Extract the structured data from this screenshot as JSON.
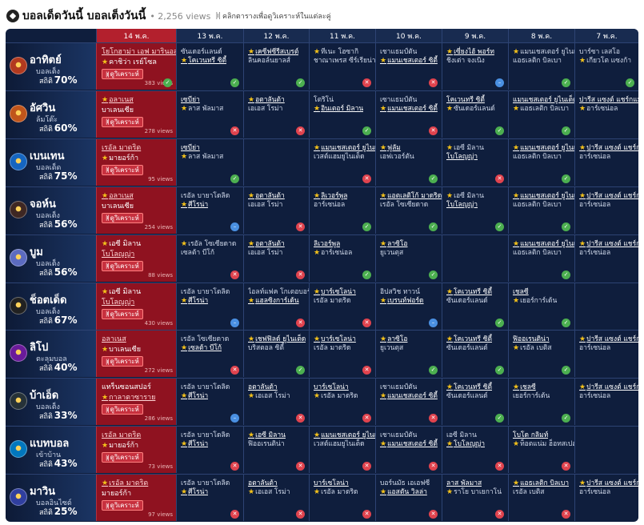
{
  "page": {
    "title": "บอลเด็ดวันนี้ บอลเต็งวันนี้",
    "views": "• 2,256 views",
    "hint": "คลิกตารางเพื่อดูวิเคราะห์ในแต่ละคู่"
  },
  "dates": [
    "14 พ.ค.",
    "13 พ.ค.",
    "12 พ.ค.",
    "11 พ.ค.",
    "10 พ.ค.",
    "9 พ.ค.",
    "8 พ.ค.",
    "7 พ.ค."
  ],
  "analyze_label": "ดูวิเคราะห์",
  "stat_label": "สถิติ",
  "colors": {
    "board": "#0f1e3d",
    "today": "#8f1220",
    "win": "#4caf50",
    "loss": "#e0434e",
    "draw": "#4a90e2",
    "star": "#f4c21b"
  },
  "teams": [
    {
      "name": "อาทิตย์",
      "type": "บอลเต็ง",
      "pct": "70%",
      "logo": "#b23a1f",
      "today": {
        "l1": "โยโกฮาม่า เอฟ มารินอส",
        "l1s": false,
        "l2": "คาชิว่า เรย์โซล",
        "l2s": true,
        "u": 1,
        "views": "383 views",
        "res": "W"
      },
      "days": [
        {
          "l1": "ซันเดอร์แลนด์",
          "l1s": false,
          "l2": "โคเวนทรี ซิตี้",
          "l2s": true,
          "u": 2,
          "res": "W"
        },
        {
          "l1": "เคซีฟซีรีสเบรต์",
          "l1s": true,
          "l2": "ลินคอล์นยาลส์",
          "l2s": false,
          "u": 1,
          "res": "W"
        },
        {
          "l1": "ทีเนะ โฮซากิ",
          "l1s": true,
          "l2": "ชาณาเพรส ซีร์เรียน่า",
          "l2s": false,
          "u": 0,
          "res": "L"
        },
        {
          "l1": "เชาแธมป์ตัน",
          "l1s": false,
          "l2": "แมนเชสเตอร์ ซิตี้",
          "l2s": true,
          "u": 2,
          "res": "L"
        },
        {
          "l1": "เซี่ยงไฮ้ พอร์ท",
          "l1s": true,
          "l2": "ชิงเต่า จงเนิง",
          "l2s": false,
          "u": 1,
          "res": "D"
        },
        {
          "l1": "แมนเชสเตอร์ ยูไนเต็ด",
          "l1s": true,
          "l2": "แอธเลติก บิลเบา",
          "l2s": false,
          "u": 0,
          "res": "W"
        },
        {
          "l1": "บาร์ซา เลสโอ",
          "l1s": false,
          "l2": "เกียวโต แซงก้า",
          "l2s": true,
          "u": 0,
          "res": "W"
        }
      ]
    },
    {
      "name": "อัศวิน",
      "type": "ล้มโต๊ะ",
      "pct": "60%",
      "logo": "#c0551b",
      "today": {
        "l1": "อลาเนส",
        "l1s": true,
        "l2": "บาเลนเซีย",
        "l2s": false,
        "u": 1,
        "views": "278 views",
        "res": ""
      },
      "days": [
        {
          "l1": "เซบีย่า",
          "l1s": false,
          "l2": "ลาส พัลมาส",
          "l2s": true,
          "u": 1,
          "res": "L"
        },
        {
          "l1": "อตาลันต้า",
          "l1s": true,
          "l2": "เอเอส โรม่า",
          "l2s": false,
          "u": 1,
          "res": "L"
        },
        {
          "l1": "โตริโน่",
          "l1s": false,
          "l2": "อินเตอร์ มิลาน",
          "l2s": true,
          "u": 2,
          "res": "W"
        },
        {
          "l1": "เซาแธมป์ตัน",
          "l1s": false,
          "l2": "แมนเชสเตอร์ ซิตี้",
          "l2s": true,
          "u": 2,
          "res": "L"
        },
        {
          "l1": "โคเวนทรี ซิตี้",
          "l1s": false,
          "l2": "ซันเดอร์แลนด์",
          "l2s": true,
          "u": 1,
          "res": "W"
        },
        {
          "l1": "แมนเชสเตอร์ ยูไนเต็ด",
          "l1s": false,
          "l2": "แอธเลติก บิลเบา",
          "l2s": true,
          "u": 1,
          "res": "W"
        },
        {
          "l1": "ปารีส แซงต์ แชร์กแมง",
          "l1s": false,
          "l2": "อาร์เซน่อล",
          "l2s": true,
          "u": 1,
          "res": ""
        }
      ]
    },
    {
      "name": "เบนเทน",
      "type": "บอลเด็ด",
      "pct": "75%",
      "logo": "#1565c0",
      "today": {
        "l1": "เรอัล มาดริด",
        "l1s": false,
        "l2": "มายอร์ก้า",
        "l2s": true,
        "u": 1,
        "views": "95 views",
        "res": ""
      },
      "days": [
        {
          "l1": "เซบีย่า",
          "l1s": false,
          "l2": "ลาส พัลมาส",
          "l2s": true,
          "u": 1,
          "res": "W"
        },
        {
          "l1": "",
          "l1s": false,
          "l2": "",
          "l2s": false,
          "u": 0,
          "res": ""
        },
        {
          "l1": "แมนเชสเตอร์ ยูไนเต็ด",
          "l1s": true,
          "l2": "เวสต์แฮมยูไนเต็ด",
          "l2s": false,
          "u": 1,
          "res": "L"
        },
        {
          "l1": "ฟูลัม",
          "l1s": true,
          "l2": "เอฟเวอร์ตัน",
          "l2s": false,
          "u": 1,
          "res": "W"
        },
        {
          "l1": "เอซี มิลาน",
          "l1s": true,
          "l2": "โบโลญญ่า",
          "l2s": false,
          "u": 2,
          "res": "L"
        },
        {
          "l1": "แมนเชสเตอร์ ยูไนเต็ด",
          "l1s": true,
          "l2": "แอธเลติก บิลเบา",
          "l2s": false,
          "u": 1,
          "res": "W"
        },
        {
          "l1": "ปารีส แซงต์ แชร์กแมง",
          "l1s": true,
          "l2": "อาร์เซน่อล",
          "l2s": false,
          "u": 1,
          "res": ""
        }
      ]
    },
    {
      "name": "จอห์น",
      "type": "บอลเต็ง",
      "pct": "56%",
      "logo": "#3e2723",
      "today": {
        "l1": "อลาเนส",
        "l1s": true,
        "l2": "บาเลนเซีย",
        "l2s": false,
        "u": 1,
        "views": "254 views",
        "res": ""
      },
      "days": [
        {
          "l1": "เรอัล บายาโดลิด",
          "l1s": false,
          "l2": "ศีโรน่า",
          "l2s": true,
          "u": 2,
          "res": "D"
        },
        {
          "l1": "อตาลันต้า",
          "l1s": true,
          "l2": "เอเอส โรม่า",
          "l2s": false,
          "u": 1,
          "res": "L"
        },
        {
          "l1": "ลิเวอร์พูล",
          "l1s": true,
          "l2": "อาร์เซน่อล",
          "l2s": false,
          "u": 1,
          "res": "W"
        },
        {
          "l1": "แอตเลติโก้ มาดริด",
          "l1s": true,
          "l2": "เรอัล โซเซียดาด",
          "l2s": false,
          "u": 1,
          "res": "W"
        },
        {
          "l1": "เอซี มิลาน",
          "l1s": true,
          "l2": "โบโลญญ่า",
          "l2s": false,
          "u": 2,
          "res": "W"
        },
        {
          "l1": "แมนเชสเตอร์ ยูไนเต็ด",
          "l1s": true,
          "l2": "แอธเลติก บิลเบา",
          "l2s": false,
          "u": 1,
          "res": "W"
        },
        {
          "l1": "ปารีส แซงต์ แชร์กแมง",
          "l1s": true,
          "l2": "อาร์เซน่อล",
          "l2s": false,
          "u": 1,
          "res": ""
        }
      ]
    },
    {
      "name": "บูม",
      "type": "บอลเต็ง",
      "pct": "56%",
      "logo": "#5c6bc0",
      "today": {
        "l1": "เอซี มิลาน",
        "l1s": true,
        "l2": "โบโลญญ่า",
        "l2s": false,
        "u": 2,
        "views": "88 views",
        "res": ""
      },
      "days": [
        {
          "l1": "เรอัล โซเซียดาด",
          "l1s": true,
          "l2": "เซลต้า บีโก้",
          "l2s": false,
          "u": 3,
          "res": "L"
        },
        {
          "l1": "อตาลันต้า",
          "l1s": true,
          "l2": "เอเอส โรม่า",
          "l2s": false,
          "u": 1,
          "res": "L"
        },
        {
          "l1": "ลิเวอร์พูล",
          "l1s": false,
          "l2": "อาร์เซน่อล",
          "l2s": true,
          "u": 1,
          "res": "W"
        },
        {
          "l1": "ลาซิโอ",
          "l1s": true,
          "l2": "ยูเวนตุส",
          "l2s": false,
          "u": 1,
          "res": "W"
        },
        {
          "l1": "",
          "l1s": false,
          "l2": "",
          "l2s": false,
          "u": 0,
          "res": ""
        },
        {
          "l1": "แมนเชสเตอร์ ยูไนเต็ด",
          "l1s": true,
          "l2": "แอธเลติก บิลเบา",
          "l2s": false,
          "u": 1,
          "res": "W"
        },
        {
          "l1": "ปารีส แซงต์ แชร์กแมง",
          "l1s": true,
          "l2": "อาร์เซน่อล",
          "l2s": false,
          "u": 1,
          "res": ""
        }
      ]
    },
    {
      "name": "ช็อตเด็ด",
      "type": "บอลเต็ง",
      "pct": "67%",
      "logo": "#212121",
      "today": {
        "l1": "เอซี มิลาน",
        "l1s": true,
        "l2": "โบโลญญ่า",
        "l2s": false,
        "u": 2,
        "views": "430 views",
        "res": ""
      },
      "days": [
        {
          "l1": "เรอัล บายาโดลิด",
          "l1s": false,
          "l2": "ศีโรน่า",
          "l2s": true,
          "u": 2,
          "res": "D"
        },
        {
          "l1": "ไอลท์แฟค โกเตอบอร์ก",
          "l1s": false,
          "l2": "แฮลซิงการ์เด้น",
          "l2s": true,
          "u": 2,
          "res": "L"
        },
        {
          "l1": "บาร์เซโลน่า",
          "l1s": true,
          "l2": "เรอัล มาดริด",
          "l2s": false,
          "u": 1,
          "res": "L"
        },
        {
          "l1": "อิปสวิช ทาวน์",
          "l1s": false,
          "l2": "เบรนท์ฟอร์ด",
          "l2s": true,
          "u": 2,
          "res": "D"
        },
        {
          "l1": "โคเวนทรี ซิตี้",
          "l1s": true,
          "l2": "ซันเดอร์แลนด์",
          "l2s": false,
          "u": 1,
          "res": "W"
        },
        {
          "l1": "เชลซี",
          "l1s": false,
          "l2": "เยอร์การ์เด้น",
          "l2s": true,
          "u": 1,
          "res": "W"
        },
        {
          "l1": "",
          "l1s": false,
          "l2": "",
          "l2s": false,
          "u": 0,
          "res": ""
        }
      ]
    },
    {
      "name": "ลิโป",
      "type": "ตะลุมบอล",
      "pct": "40%",
      "logo": "#6a1b9a",
      "today": {
        "l1": "อลาเนส",
        "l1s": false,
        "l2": "บาเลนเซีย",
        "l2s": true,
        "u": 1,
        "views": "272 views",
        "res": ""
      },
      "days": [
        {
          "l1": "เรอัล โซเซียดาด",
          "l1s": false,
          "l2": "เซลต้า บีโก้",
          "l2s": true,
          "u": 2,
          "res": "L"
        },
        {
          "l1": "เชฟฟิลด์ ยูไนเต็ด",
          "l1s": true,
          "l2": "บริสตอล ซิตี้",
          "l2s": false,
          "u": 1,
          "res": "W"
        },
        {
          "l1": "บาร์เซโลน่า",
          "l1s": true,
          "l2": "เรอัล มาดริด",
          "l2s": false,
          "u": 1,
          "res": "L"
        },
        {
          "l1": "ลาซิโอ",
          "l1s": true,
          "l2": "ยูเวนตุส",
          "l2s": false,
          "u": 1,
          "res": "W"
        },
        {
          "l1": "โคเวนทรี ซิตี้",
          "l1s": true,
          "l2": "ซันเดอร์แลนด์",
          "l2s": false,
          "u": 1,
          "res": "W"
        },
        {
          "l1": "ฟิออเรนติน่า",
          "l1s": false,
          "l2": "เรอัล เบติส",
          "l2s": true,
          "u": 1,
          "res": "W"
        },
        {
          "l1": "ปารีส แซงต์ แชร์กแมง",
          "l1s": true,
          "l2": "อาร์เซน่อล",
          "l2s": false,
          "u": 1,
          "res": ""
        }
      ]
    },
    {
      "name": "บ้าเอ็ด",
      "type": "บอลเต็ง",
      "pct": "33%",
      "logo": "#263238",
      "today": {
        "l1": "แทร็นซอนสปอร์",
        "l1s": false,
        "l2": "กาลาตาซาราย",
        "l2s": true,
        "u": 2,
        "views": "286 views",
        "res": ""
      },
      "days": [
        {
          "l1": "เรอัล บายาโดลิด",
          "l1s": false,
          "l2": "ศีโรน่า",
          "l2s": true,
          "u": 2,
          "res": "D"
        },
        {
          "l1": "อตาลันต้า",
          "l1s": false,
          "l2": "เอเอส โรม่า",
          "l2s": true,
          "u": 1,
          "res": "L"
        },
        {
          "l1": "บาร์เซโลน่า",
          "l1s": false,
          "l2": "เรอัล มาดริด",
          "l2s": true,
          "u": 1,
          "res": "L"
        },
        {
          "l1": "เชาแธมป์ตัน",
          "l1s": false,
          "l2": "แมนเชสเตอร์ ซิตี้",
          "l2s": true,
          "u": 2,
          "res": "L"
        },
        {
          "l1": "โคเวนทรี ซิตี้",
          "l1s": true,
          "l2": "ซันเดอร์แลนด์",
          "l2s": false,
          "u": 1,
          "res": "W"
        },
        {
          "l1": "เชลซี",
          "l1s": true,
          "l2": "เยอร์การ์เด้น",
          "l2s": false,
          "u": 1,
          "res": "W"
        },
        {
          "l1": "ปารีส แซงต์ แชร์กแมง",
          "l1s": true,
          "l2": "อาร์เซน่อล",
          "l2s": false,
          "u": 1,
          "res": ""
        }
      ]
    },
    {
      "name": "แบทบอล",
      "type": "เข้าบ้าน",
      "pct": "43%",
      "logo": "#0277bd",
      "today": {
        "l1": "เรอัล มาดริด",
        "l1s": false,
        "l2": "มายอร์ก้า",
        "l2s": true,
        "u": 1,
        "views": "73 views",
        "res": ""
      },
      "days": [
        {
          "l1": "เรอัล บายาโดลิด",
          "l1s": false,
          "l2": "ศีโรน่า",
          "l2s": true,
          "u": 2,
          "res": "L"
        },
        {
          "l1": "เอซี มิลาน",
          "l1s": true,
          "l2": "ฟิออเรนติน่า",
          "l2s": false,
          "u": 1,
          "res": "L"
        },
        {
          "l1": "แมนเชสเตอร์ ยูไนเต็ด",
          "l1s": true,
          "l2": "เวสต์แฮมยูไนเต็ด",
          "l2s": false,
          "u": 1,
          "res": "L"
        },
        {
          "l1": "เชาแธมป์ตัน",
          "l1s": false,
          "l2": "แมนเชสเตอร์ ซิตี้",
          "l2s": true,
          "u": 2,
          "res": "L"
        },
        {
          "l1": "เอซี มิลาน",
          "l1s": false,
          "l2": "โบโลญญ่า",
          "l2s": true,
          "u": 2,
          "res": "L"
        },
        {
          "l1": "โบโด กลิมท์",
          "l1s": false,
          "l2": "ท็อตแน่ม ฮ็อทสเปอร์",
          "l2s": true,
          "u": 1,
          "res": "L"
        },
        {
          "l1": "",
          "l1s": false,
          "l2": "",
          "l2s": false,
          "u": 0,
          "res": ""
        }
      ]
    },
    {
      "name": "มาวิน",
      "type": "บอลอินไซด์",
      "pct": "25%",
      "logo": "#303f9f",
      "today": {
        "l1": "เรอัล มาดริด",
        "l1s": true,
        "l2": "มายอร์ก้า",
        "l2s": false,
        "u": 1,
        "views": "97 views",
        "res": ""
      },
      "days": [
        {
          "l1": "เรอัล บายาโดลิด",
          "l1s": false,
          "l2": "ศีโรน่า",
          "l2s": true,
          "u": 2,
          "res": "L"
        },
        {
          "l1": "อตาลันต้า",
          "l1s": false,
          "l2": "เอเอส โรม่า",
          "l2s": true,
          "u": 1,
          "res": "L"
        },
        {
          "l1": "บาร์เซโลน่า",
          "l1s": false,
          "l2": "เรอัล มาดริด",
          "l2s": true,
          "u": 1,
          "res": "L"
        },
        {
          "l1": "บอร์นมัธ เอเอฟซี",
          "l1s": false,
          "l2": "แอสตัน วิลล่า",
          "l2s": true,
          "u": 2,
          "res": "L"
        },
        {
          "l1": "ลาส พัลมาส",
          "l1s": false,
          "l2": "ราโย บาเยกาโน่",
          "l2s": true,
          "u": 1,
          "res": "L"
        },
        {
          "l1": "แอธเลติก บิลเบา",
          "l1s": true,
          "l2": "เรอัล เบติส",
          "l2s": false,
          "u": 1,
          "res": "L"
        },
        {
          "l1": "ปารีส แซงต์ แชร์กแมง",
          "l1s": true,
          "l2": "อาร์เซน่อล",
          "l2s": false,
          "u": 1,
          "res": ""
        }
      ]
    }
  ]
}
